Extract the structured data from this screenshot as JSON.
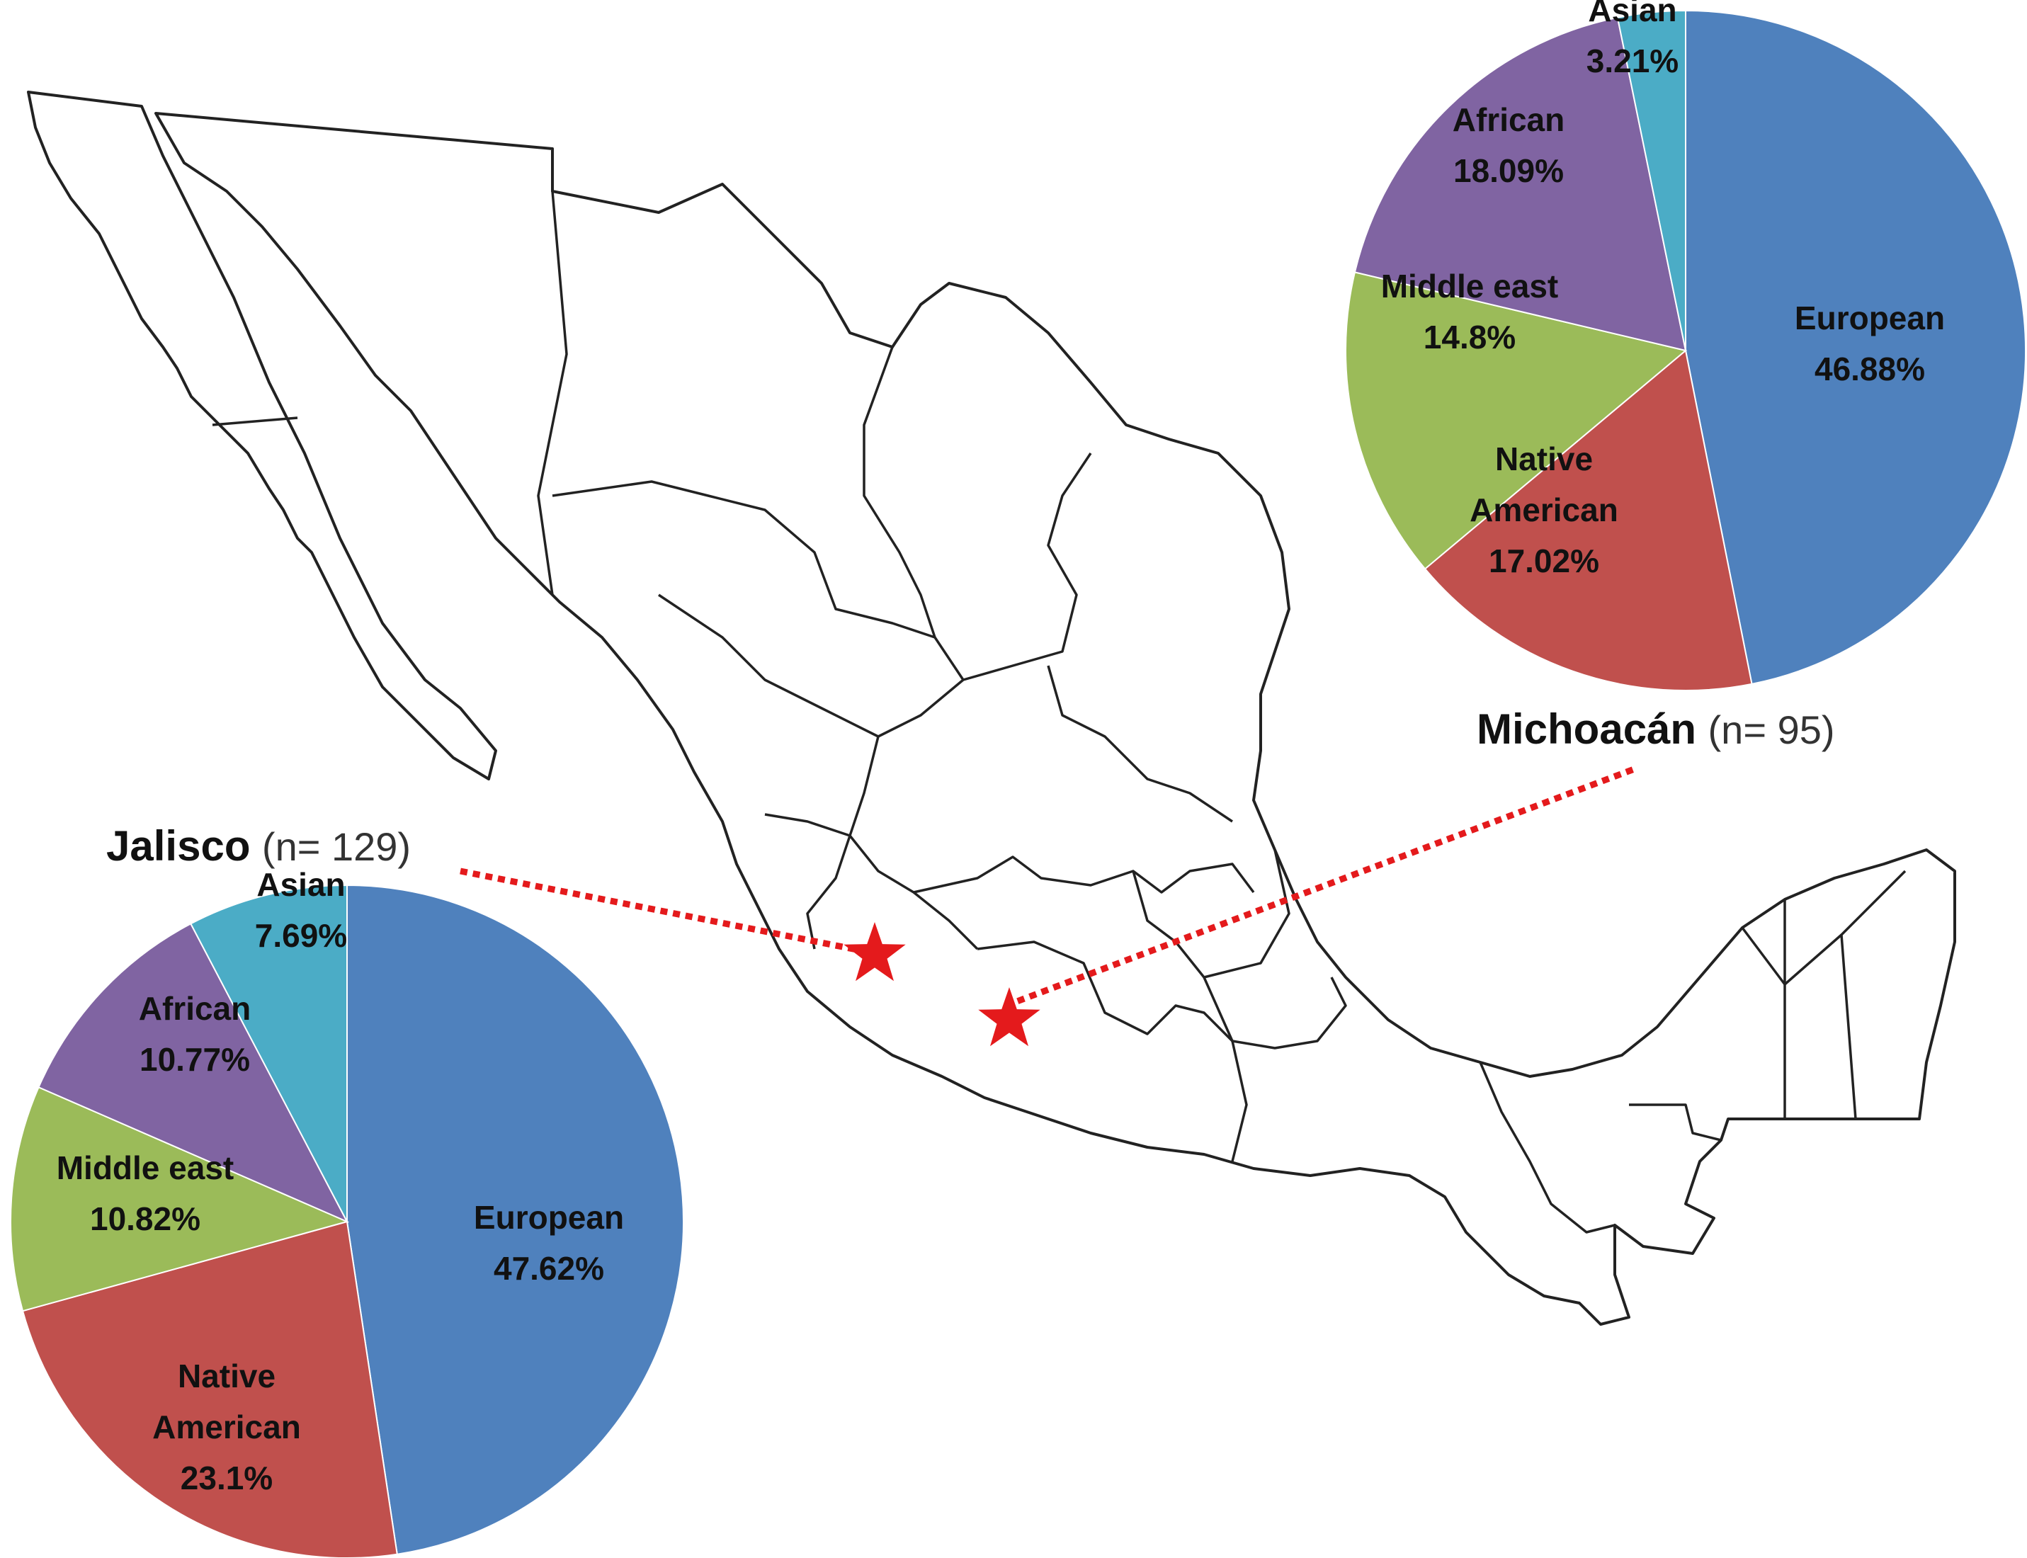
{
  "chart_data": [
    {
      "type": "pie",
      "state": "Michoacán",
      "sample_size": "(n= 95)",
      "slices": [
        {
          "label": "European",
          "value": 46.88,
          "display": "46.88%",
          "color": "#4f81bd"
        },
        {
          "label": "Native American",
          "value": 17.02,
          "display": "17.02%",
          "color": "#c0504d"
        },
        {
          "label": "Middle east",
          "value": 14.8,
          "display": "14.8%",
          "color": "#9bbb59"
        },
        {
          "label": "African",
          "value": 18.09,
          "display": "18.09%",
          "color": "#8064a2"
        },
        {
          "label": "Asian",
          "value": 3.21,
          "display": "3.21%",
          "color": "#4bacc6"
        }
      ]
    },
    {
      "type": "pie",
      "state": "Jalisco",
      "sample_size": "(n= 129)",
      "slices": [
        {
          "label": "European",
          "value": 47.62,
          "display": "47.62%",
          "color": "#4f81bd"
        },
        {
          "label": "Native American",
          "value": 23.1,
          "display": "23.1%",
          "color": "#c0504d"
        },
        {
          "label": "Middle east",
          "value": 10.82,
          "display": "10.82%",
          "color": "#9bbb59"
        },
        {
          "label": "African",
          "value": 10.77,
          "display": "10.77%",
          "color": "#8064a2"
        },
        {
          "label": "Asian",
          "value": 7.69,
          "display": "7.69%",
          "color": "#4bacc6"
        }
      ]
    }
  ],
  "map": {
    "marker_color": "#e41a1c",
    "marker_icon": "star-icon"
  }
}
